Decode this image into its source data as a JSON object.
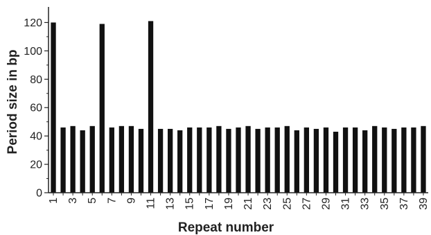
{
  "chart_data": {
    "type": "bar",
    "title": "",
    "xlabel": "Repeat number",
    "ylabel": "Period size in bp",
    "ylim": [
      0,
      130
    ],
    "y_ticks": [
      0,
      20,
      40,
      60,
      80,
      100,
      120
    ],
    "grid": false,
    "legend": "none",
    "categories": [
      "1",
      "2",
      "3",
      "4",
      "5",
      "6",
      "7",
      "8",
      "9",
      "10",
      "11",
      "12",
      "13",
      "14",
      "15",
      "16",
      "17",
      "18",
      "19",
      "20",
      "21",
      "22",
      "23",
      "24",
      "25",
      "26",
      "27",
      "28",
      "29",
      "30",
      "31",
      "32",
      "33",
      "34",
      "35",
      "36",
      "37",
      "38",
      "39"
    ],
    "category_labels": [
      "1",
      "",
      "3",
      "",
      "5",
      "",
      "7",
      "",
      "9",
      "",
      "11",
      "",
      "13",
      "",
      "15",
      "",
      "17",
      "",
      "19",
      "",
      "21",
      "",
      "23",
      "",
      "25",
      "",
      "27",
      "",
      "29",
      "",
      "31",
      "",
      "33",
      "",
      "35",
      "",
      "37",
      "",
      "39"
    ],
    "values": [
      120,
      46,
      47,
      44,
      47,
      119,
      46,
      47,
      47,
      45,
      121,
      45,
      45,
      44,
      46,
      46,
      46,
      47,
      45,
      46,
      47,
      45,
      46,
      46,
      47,
      44,
      46,
      45,
      46,
      43,
      46,
      46,
      44,
      47,
      46,
      45,
      46,
      46,
      47
    ],
    "bar_color": "#111111"
  }
}
